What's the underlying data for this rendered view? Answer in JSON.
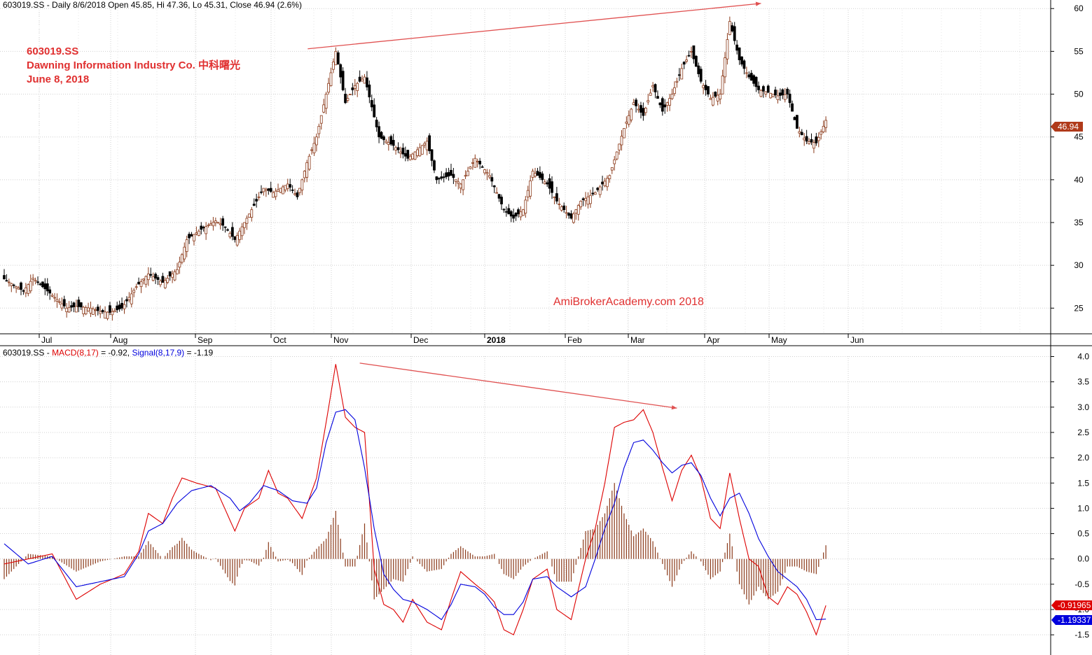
{
  "price_panel": {
    "header": "603019.SS - Daily 8/6/2018 Open 45.85, Hi 47.36, Lo 45.31, Close 46.94 (2.6%)",
    "annotation_lines": [
      "603019.SS",
      "Dawning Information Industry Co. 中科曙光",
      "June 8, 2018"
    ],
    "watermark": "AmiBrokerAcademy.com  2018",
    "last_close_label": "46.94"
  },
  "macd_panel": {
    "header_parts": [
      "603019.SS - ",
      "MACD(8,17)",
      " = -0.92, ",
      "Signal(8,17,9)",
      " = -1.19"
    ],
    "macd_label": "-0.91965",
    "signal_label": "-1.19337"
  },
  "colors": {
    "up_candle": "#8b3a1a",
    "down_candle": "#000000",
    "macd_line": "#dd0000",
    "signal_line": "#0000dd",
    "histogram": "#8b3a1a",
    "annotation": "#e03030",
    "grid": "#d0d0d0",
    "trend_arrow": "#e05050"
  },
  "chart_data": [
    {
      "type": "candlestick",
      "title": "603019.SS - Daily",
      "x_tick_labels": [
        "Jul",
        "Aug",
        "Sep",
        "Oct",
        "Nov",
        "Dec",
        "2018",
        "Feb",
        "Mar",
        "Apr",
        "May",
        "Jun"
      ],
      "y_ticks": [
        25,
        30,
        35,
        40,
        45,
        50,
        55,
        60
      ],
      "ylim": [
        22,
        61
      ],
      "close_anchors": [
        [
          0,
          28.4
        ],
        [
          8,
          27
        ],
        [
          12,
          28.5
        ],
        [
          20,
          26.5
        ],
        [
          26,
          25
        ],
        [
          30,
          25.2
        ],
        [
          36,
          25
        ],
        [
          40,
          24.6
        ],
        [
          44,
          24.5
        ],
        [
          49,
          25
        ],
        [
          55,
          27.5
        ],
        [
          60,
          29
        ],
        [
          66,
          28
        ],
        [
          72,
          29.5
        ],
        [
          76,
          33
        ],
        [
          82,
          34.2
        ],
        [
          88,
          35.2
        ],
        [
          92,
          34.5
        ],
        [
          96,
          33
        ],
        [
          100,
          35
        ],
        [
          104,
          37
        ],
        [
          108,
          39
        ],
        [
          112,
          38.5
        ],
        [
          118,
          39.5
        ],
        [
          122,
          38
        ],
        [
          126,
          42
        ],
        [
          130,
          45
        ],
        [
          134,
          50
        ],
        [
          138,
          55
        ],
        [
          142,
          49
        ],
        [
          146,
          51
        ],
        [
          150,
          52
        ],
        [
          156,
          45
        ],
        [
          162,
          44
        ],
        [
          168,
          42.5
        ],
        [
          172,
          43.5
        ],
        [
          176,
          44.5
        ],
        [
          180,
          40
        ],
        [
          186,
          40.5
        ],
        [
          190,
          39.5
        ],
        [
          196,
          42.5
        ],
        [
          202,
          40.5
        ],
        [
          208,
          36.5
        ],
        [
          212,
          35.5
        ],
        [
          216,
          36.5
        ],
        [
          220,
          41
        ],
        [
          226,
          39.5
        ],
        [
          230,
          37.5
        ],
        [
          236,
          35.5
        ],
        [
          240,
          37.5
        ],
        [
          246,
          38.5
        ],
        [
          252,
          40.5
        ],
        [
          258,
          46
        ],
        [
          262,
          49
        ],
        [
          266,
          47.5
        ],
        [
          270,
          51
        ],
        [
          274,
          48
        ],
        [
          278,
          50
        ],
        [
          282,
          53
        ],
        [
          286,
          55
        ],
        [
          290,
          51.5
        ],
        [
          294,
          49.5
        ],
        [
          298,
          50
        ],
        [
          302,
          58.5
        ],
        [
          306,
          54
        ],
        [
          310,
          52
        ],
        [
          314,
          50.5
        ],
        [
          318,
          50.2
        ],
        [
          322,
          49.8
        ],
        [
          326,
          50
        ],
        [
          330,
          46
        ],
        [
          334,
          44.5
        ],
        [
          338,
          44.3
        ],
        [
          342,
          46.9
        ]
      ],
      "close_last": 46.94
    },
    {
      "type": "line",
      "title": "MACD(8,17), Signal(8,17,9)",
      "y_ticks": [
        4.0,
        3.5,
        3.0,
        2.5,
        2.0,
        1.5,
        1.0,
        0.5,
        0.0,
        -0.5,
        -1.0,
        -1.5
      ],
      "ylim": [
        -1.88,
        4.15
      ],
      "macd_anchors": [
        [
          0,
          -0.1
        ],
        [
          20,
          0.1
        ],
        [
          30,
          -0.8
        ],
        [
          40,
          -0.5
        ],
        [
          50,
          -0.3
        ],
        [
          56,
          0.15
        ],
        [
          60,
          0.9
        ],
        [
          66,
          0.7
        ],
        [
          70,
          1.2
        ],
        [
          74,
          1.6
        ],
        [
          80,
          1.5
        ],
        [
          88,
          1.4
        ],
        [
          96,
          0.55
        ],
        [
          100,
          1.0
        ],
        [
          106,
          1.2
        ],
        [
          110,
          1.75
        ],
        [
          114,
          1.3
        ],
        [
          118,
          1.2
        ],
        [
          124,
          0.8
        ],
        [
          130,
          1.6
        ],
        [
          134,
          2.7
        ],
        [
          138,
          3.85
        ],
        [
          142,
          2.8
        ],
        [
          146,
          2.6
        ],
        [
          150,
          2.5
        ],
        [
          154,
          -0.2
        ],
        [
          158,
          -0.9
        ],
        [
          162,
          -1.0
        ],
        [
          166,
          -1.25
        ],
        [
          170,
          -0.8
        ],
        [
          176,
          -1.25
        ],
        [
          182,
          -1.4
        ],
        [
          186,
          -0.8
        ],
        [
          190,
          -0.25
        ],
        [
          196,
          -0.5
        ],
        [
          200,
          -0.65
        ],
        [
          204,
          -0.85
        ],
        [
          208,
          -1.4
        ],
        [
          212,
          -1.5
        ],
        [
          216,
          -1.0
        ],
        [
          220,
          -0.4
        ],
        [
          226,
          -0.2
        ],
        [
          230,
          -1.0
        ],
        [
          236,
          -1.2
        ],
        [
          242,
          0.0
        ],
        [
          246,
          0.6
        ],
        [
          250,
          1.5
        ],
        [
          254,
          2.6
        ],
        [
          258,
          2.7
        ],
        [
          262,
          2.75
        ],
        [
          266,
          2.95
        ],
        [
          270,
          2.5
        ],
        [
          274,
          1.8
        ],
        [
          278,
          1.15
        ],
        [
          282,
          1.75
        ],
        [
          286,
          2.05
        ],
        [
          290,
          1.6
        ],
        [
          294,
          0.8
        ],
        [
          298,
          0.6
        ],
        [
          302,
          1.7
        ],
        [
          306,
          0.8
        ],
        [
          310,
          0.0
        ],
        [
          314,
          -0.15
        ],
        [
          318,
          -0.75
        ],
        [
          322,
          -0.9
        ],
        [
          326,
          -0.55
        ],
        [
          330,
          -0.7
        ],
        [
          334,
          -1.05
        ],
        [
          338,
          -1.5
        ],
        [
          342,
          -0.92
        ]
      ],
      "signal_anchors": [
        [
          0,
          0.3
        ],
        [
          10,
          -0.1
        ],
        [
          20,
          0.05
        ],
        [
          30,
          -0.55
        ],
        [
          40,
          -0.45
        ],
        [
          50,
          -0.35
        ],
        [
          56,
          0.1
        ],
        [
          60,
          0.55
        ],
        [
          66,
          0.7
        ],
        [
          72,
          1.1
        ],
        [
          78,
          1.35
        ],
        [
          86,
          1.45
        ],
        [
          94,
          1.2
        ],
        [
          98,
          0.95
        ],
        [
          102,
          1.1
        ],
        [
          108,
          1.45
        ],
        [
          114,
          1.35
        ],
        [
          120,
          1.15
        ],
        [
          126,
          1.1
        ],
        [
          130,
          1.4
        ],
        [
          134,
          2.3
        ],
        [
          138,
          2.9
        ],
        [
          142,
          2.95
        ],
        [
          146,
          2.75
        ],
        [
          150,
          1.8
        ],
        [
          154,
          0.6
        ],
        [
          158,
          -0.3
        ],
        [
          162,
          -0.6
        ],
        [
          166,
          -0.8
        ],
        [
          170,
          -0.85
        ],
        [
          176,
          -1.0
        ],
        [
          182,
          -1.2
        ],
        [
          186,
          -0.9
        ],
        [
          190,
          -0.5
        ],
        [
          196,
          -0.55
        ],
        [
          200,
          -0.7
        ],
        [
          204,
          -0.95
        ],
        [
          208,
          -1.1
        ],
        [
          212,
          -1.1
        ],
        [
          216,
          -0.85
        ],
        [
          220,
          -0.4
        ],
        [
          226,
          -0.35
        ],
        [
          230,
          -0.55
        ],
        [
          236,
          -0.75
        ],
        [
          242,
          -0.55
        ],
        [
          246,
          0.0
        ],
        [
          250,
          0.6
        ],
        [
          254,
          1.1
        ],
        [
          258,
          1.8
        ],
        [
          262,
          2.3
        ],
        [
          266,
          2.35
        ],
        [
          270,
          2.15
        ],
        [
          274,
          1.9
        ],
        [
          278,
          1.7
        ],
        [
          282,
          1.85
        ],
        [
          286,
          1.9
        ],
        [
          290,
          1.65
        ],
        [
          294,
          1.2
        ],
        [
          298,
          0.85
        ],
        [
          302,
          1.2
        ],
        [
          306,
          1.3
        ],
        [
          310,
          0.9
        ],
        [
          314,
          0.4
        ],
        [
          318,
          0.05
        ],
        [
          322,
          -0.25
        ],
        [
          326,
          -0.4
        ],
        [
          330,
          -0.55
        ],
        [
          334,
          -0.8
        ],
        [
          338,
          -1.2
        ],
        [
          342,
          -1.19
        ]
      ],
      "histogram_note": "histogram = macd - signal"
    }
  ]
}
